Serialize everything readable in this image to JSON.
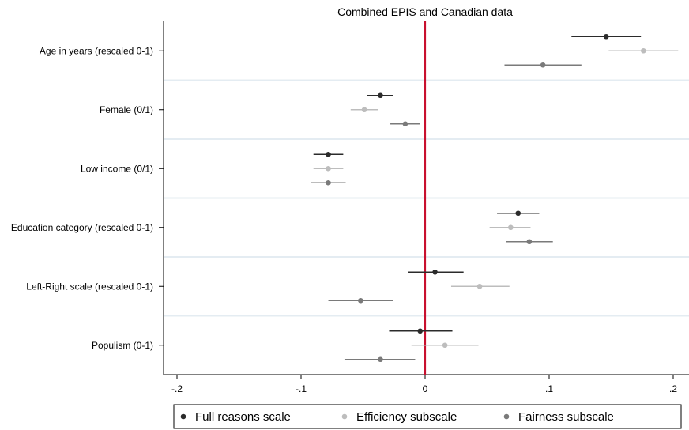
{
  "chart_data": {
    "type": "scatter",
    "subtype": "coefficient plot with confidence intervals",
    "title": "Combined EPIS and Canadian data",
    "xlabel": "",
    "ylabel": "",
    "xlim": [
      -0.21,
      0.215
    ],
    "x_ticks": [
      -0.2,
      -0.1,
      0,
      0.1,
      0.2
    ],
    "x_tick_labels": [
      "-.2",
      "-.1",
      "0",
      ".1",
      ".2"
    ],
    "reference_line": {
      "x": 0,
      "color": "#c8102e"
    },
    "categories": [
      "Age in years (rescaled 0-1)",
      "Female (0/1)",
      "Low income (0/1)",
      "Education category (rescaled 0-1)",
      "Left-Right scale (rescaled 0-1)",
      "Populism (0-1)"
    ],
    "series": [
      {
        "name": "Full reasons scale",
        "color": "#2b2b2b",
        "estimates": [
          0.146,
          -0.036,
          -0.078,
          0.075,
          0.008,
          -0.004
        ],
        "ci_low": [
          0.118,
          -0.047,
          -0.09,
          0.058,
          -0.014,
          -0.029
        ],
        "ci_high": [
          0.174,
          -0.026,
          -0.066,
          0.092,
          0.031,
          0.022
        ]
      },
      {
        "name": "Efficiency subscale",
        "color": "#bdbdbd",
        "estimates": [
          0.176,
          -0.049,
          -0.078,
          0.069,
          0.044,
          0.016
        ],
        "ci_low": [
          0.148,
          -0.06,
          -0.09,
          0.052,
          0.021,
          -0.011
        ],
        "ci_high": [
          0.204,
          -0.038,
          -0.066,
          0.085,
          0.068,
          0.043
        ]
      },
      {
        "name": "Fairness subscale",
        "color": "#7a7a7a",
        "estimates": [
          0.095,
          -0.016,
          -0.078,
          0.084,
          -0.052,
          -0.036
        ],
        "ci_low": [
          0.064,
          -0.028,
          -0.092,
          0.065,
          -0.078,
          -0.065
        ],
        "ci_high": [
          0.126,
          -0.004,
          -0.064,
          0.103,
          -0.026,
          -0.008
        ]
      }
    ],
    "grid": true,
    "legend_position": "bottom"
  }
}
